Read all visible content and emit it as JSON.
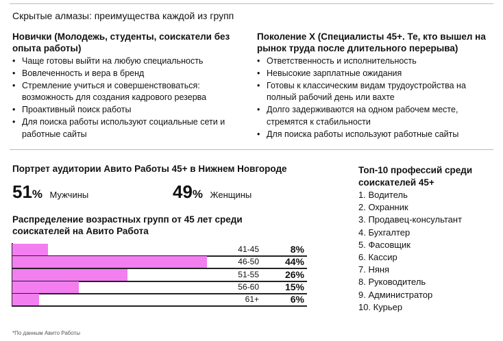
{
  "title": "Скрытые алмазы: преимущества каждой из групп",
  "left": {
    "heading": "Новички (Молодежь, студенты, соискатели без опыта работы)",
    "items": [
      "Чаще готовы выйти на любую специальность",
      "Вовлеченность и вера в бренд",
      "Стремление учиться и совершенствоваться: возможность для создания кадрового резерва",
      "Проактивный поиск работы",
      "Для поиска работы используют социальные сети и работные сайты"
    ]
  },
  "right": {
    "heading": "Поколение Х (Специалисты 45+. Те, кто вышел на рынок труда после длительного перерыва)",
    "items": [
      "Ответственность и исполнительность",
      "Невысокие зарплатные ожидания",
      "Готовы к классическим видам трудоустройства на полный рабочий день или вахте",
      "Долго задерживаются на одном рабочем месте, стремятся к стабильности",
      "Для поиска работы используют работные сайты"
    ]
  },
  "portrait": {
    "heading": "Портрет аудитории Авито Работы 45+ в Нижнем Новгороде",
    "men_value": "51",
    "men_unit": "%",
    "men_label": "Мужчины",
    "women_value": "49",
    "women_unit": "%",
    "women_label": "Женщины"
  },
  "chart_data": {
    "type": "bar",
    "title": "Распределение возрастных групп от 45 лет среди соискателей на Авито Работа",
    "categories": [
      "41-45",
      "46-50",
      "51-55",
      "56-60",
      "61+"
    ],
    "values": [
      8,
      44,
      26,
      15,
      6
    ],
    "value_labels": [
      "8%",
      "44%",
      "26%",
      "15%",
      "6%"
    ],
    "bar_color": "#f27ef0"
  },
  "top10": {
    "heading": "Топ-10 профессий среди соискателей 45+",
    "items": [
      "1.  Водитель",
      "2.  Охранник",
      "3.  Продавец-консультант",
      "4.  Бухгалтер",
      "5.  Фасовщик",
      "6.  Кассир",
      "7.  Няня",
      "8.  Руководитель",
      "9.  Администратор",
      "10. Курьер"
    ]
  },
  "footnote": "*По данным Авито Работы"
}
